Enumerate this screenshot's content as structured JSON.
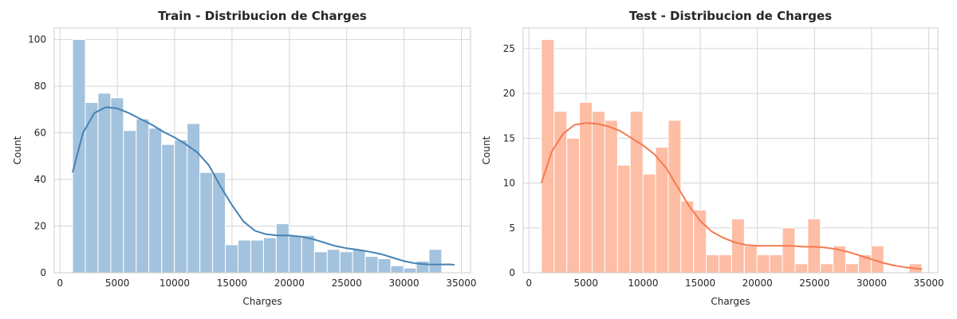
{
  "chart_data": [
    {
      "type": "bar",
      "title": "Train - Distribucion de Charges",
      "xlabel": "Charges",
      "ylabel": "Count",
      "xlim": [
        -500,
        35800
      ],
      "ylim": [
        0,
        105
      ],
      "xticks": [
        0,
        5000,
        10000,
        15000,
        20000,
        25000,
        30000,
        35000
      ],
      "xtick_labels": [
        "0",
        "5000",
        "10000",
        "15000",
        "20000",
        "25000",
        "30000",
        "35000"
      ],
      "yticks": [
        0,
        20,
        40,
        60,
        80,
        100
      ],
      "ytick_labels": [
        "0",
        "20",
        "40",
        "60",
        "80",
        "100"
      ],
      "grid": true,
      "bins": {
        "start": 1100,
        "width": 1110,
        "counts": [
          100,
          73,
          77,
          75,
          61,
          66,
          62,
          55,
          57,
          64,
          43,
          43,
          12,
          14,
          14,
          15,
          21,
          16,
          16,
          9,
          10,
          9,
          10,
          7,
          6,
          3,
          2,
          5,
          10
        ]
      },
      "kde": {
        "x": [
          1100,
          2000,
          3000,
          4000,
          5000,
          6000,
          7000,
          8000,
          9000,
          10000,
          11000,
          12000,
          13000,
          14000,
          15000,
          16000,
          17000,
          18000,
          19000,
          20000,
          21000,
          22000,
          23000,
          24000,
          25000,
          26000,
          27000,
          28000,
          29000,
          30000,
          31000,
          32000,
          33000,
          34000,
          34400
        ],
        "y": [
          43,
          60,
          68.5,
          71,
          70.5,
          68.5,
          66,
          63.5,
          60.5,
          58,
          55,
          51.5,
          46,
          37,
          29,
          22,
          18,
          16.5,
          16,
          16,
          15.5,
          14.5,
          13,
          11.5,
          10.5,
          9.8,
          9,
          8,
          6.5,
          5,
          4,
          3.6,
          3.5,
          3.6,
          3.4
        ]
      },
      "colors": {
        "bar": "#a3c2dd",
        "edge": "#ffffff",
        "line": "#4682b4"
      }
    },
    {
      "type": "bar",
      "title": "Test - Distribucion de Charges",
      "xlabel": "Charges",
      "ylabel": "Count",
      "xlim": [
        -500,
        35800
      ],
      "ylim": [
        0,
        27.3
      ],
      "xticks": [
        0,
        5000,
        10000,
        15000,
        20000,
        25000,
        30000,
        35000
      ],
      "xtick_labels": [
        "0",
        "5000",
        "10000",
        "15000",
        "20000",
        "25000",
        "30000",
        "35000"
      ],
      "yticks": [
        0,
        5,
        10,
        15,
        20,
        25
      ],
      "ytick_labels": [
        "0",
        "5",
        "10",
        "15",
        "20",
        "25"
      ],
      "grid": true,
      "bins": {
        "start": 1100,
        "width": 1110,
        "counts": [
          26,
          18,
          15,
          19,
          18,
          17,
          12,
          18,
          11,
          14,
          17,
          8,
          7,
          2,
          2,
          6,
          3,
          2,
          2,
          5,
          1,
          6,
          1,
          3,
          1,
          2,
          3,
          0,
          0,
          1
        ]
      },
      "kde": {
        "x": [
          1100,
          2000,
          3000,
          4000,
          5000,
          6000,
          7000,
          8000,
          9000,
          10000,
          11000,
          12000,
          13000,
          14000,
          15000,
          16000,
          17000,
          18000,
          19000,
          20000,
          21000,
          22000,
          23000,
          24000,
          25000,
          26000,
          27000,
          28000,
          29000,
          30000,
          31000,
          32000,
          33000,
          34400
        ],
        "y": [
          10,
          13.5,
          15.5,
          16.5,
          16.7,
          16.6,
          16.3,
          15.8,
          15,
          14.2,
          13.2,
          11.7,
          9.6,
          7.5,
          5.8,
          4.6,
          3.9,
          3.4,
          3.1,
          3,
          3,
          3,
          3,
          2.9,
          2.9,
          2.8,
          2.6,
          2.3,
          1.9,
          1.5,
          1.1,
          0.8,
          0.6,
          0.4
        ]
      },
      "colors": {
        "bar": "#fdbea5",
        "edge": "#ffffff",
        "line": "#f67a4f"
      }
    }
  ]
}
